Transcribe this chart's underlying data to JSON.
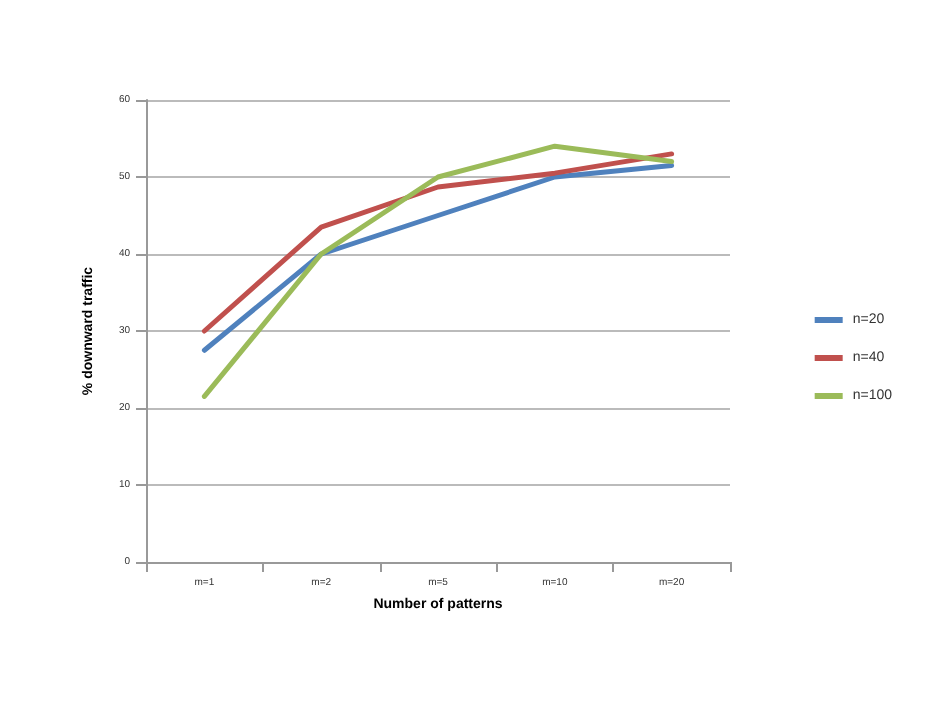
{
  "chart_data": {
    "type": "line",
    "xlabel": "Number of patterns",
    "ylabel": "% downward traffic",
    "categories": [
      "m=1",
      "m=2",
      "m=5",
      "m=10",
      "m=20"
    ],
    "series": [
      {
        "name": "n=20",
        "color": "#4f81bd",
        "values": [
          27.5,
          40,
          45,
          50,
          51.5
        ]
      },
      {
        "name": "n=40",
        "color": "#c0504d",
        "values": [
          30,
          43.5,
          48.7,
          50.5,
          53
        ]
      },
      {
        "name": "n=100",
        "color": "#9bbb59",
        "values": [
          21.5,
          40,
          50,
          54,
          52
        ]
      }
    ],
    "ylim": [
      0,
      60
    ],
    "yticks": [
      0,
      10,
      20,
      30,
      40,
      50,
      60
    ],
    "grid": "y",
    "legend": "right",
    "marker": "none",
    "line_style": "solid"
  }
}
